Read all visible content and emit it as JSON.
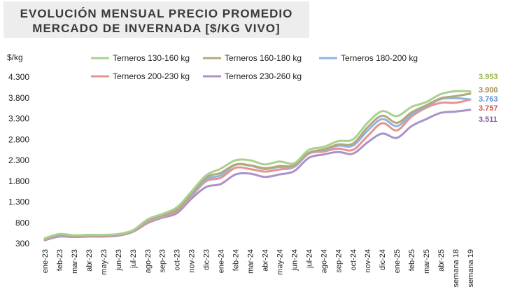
{
  "chart_data": {
    "type": "line",
    "title": [
      "EVOLUCIÓN MENSUAL PRECIO PROMEDIO",
      "MERCADO DE INVERNADA [$/KG VIVO]"
    ],
    "ylabel": "$/kg",
    "ylim": [
      300,
      4300
    ],
    "yticks": [
      300,
      800,
      1300,
      1800,
      2300,
      2800,
      3300,
      3800,
      4300
    ],
    "yticklabels": [
      "300",
      "800",
      "1.300",
      "1.800",
      "2.300",
      "2.800",
      "3.300",
      "3.800",
      "4.300"
    ],
    "categories": [
      "ene-23",
      "feb-23",
      "mar-23",
      "abr-23",
      "may-23",
      "jun-23",
      "jul-23",
      "ago-23",
      "sep-23",
      "oct-23",
      "nov-23",
      "dic-23",
      "ene-24",
      "feb-24",
      "mar-24",
      "abr-24",
      "may-24",
      "jun-24",
      "jul-24",
      "ago-24",
      "sep-24",
      "oct-24",
      "nov-24",
      "dic-24",
      "ene-25",
      "feb-25",
      "mar-25",
      "abr-25",
      "semana 18",
      "semana 19"
    ],
    "series": [
      {
        "name": "Terneros 130-160 kg",
        "color": "#a9d18e",
        "end_label": "3.953",
        "values": [
          430,
          530,
          500,
          510,
          510,
          530,
          620,
          880,
          1010,
          1170,
          1550,
          1940,
          2100,
          2300,
          2300,
          2200,
          2270,
          2230,
          2550,
          2620,
          2760,
          2800,
          3200,
          3480,
          3360,
          3580,
          3700,
          3890,
          3960,
          3953
        ]
      },
      {
        "name": "Terneros 160-180 kg",
        "color": "#b5a878",
        "end_label": "3.900",
        "values": [
          420,
          510,
          490,
          500,
          500,
          520,
          600,
          860,
          980,
          1120,
          1500,
          1890,
          2000,
          2200,
          2180,
          2110,
          2160,
          2180,
          2480,
          2560,
          2680,
          2700,
          3090,
          3370,
          3200,
          3450,
          3620,
          3790,
          3840,
          3900
        ]
      },
      {
        "name": "Terneros 180-200 kg",
        "color": "#8fb4e3",
        "end_label": "3.763",
        "values": [
          410,
          500,
          490,
          500,
          500,
          520,
          600,
          840,
          960,
          1110,
          1460,
          1840,
          1940,
          2190,
          2170,
          2090,
          2140,
          2150,
          2470,
          2540,
          2650,
          2650,
          3010,
          3290,
          3120,
          3400,
          3590,
          3770,
          3790,
          3763
        ]
      },
      {
        "name": "Terneros 200-230 kg",
        "color": "#e8938e",
        "end_label": "3.757",
        "values": [
          400,
          490,
          480,
          490,
          490,
          510,
          590,
          810,
          940,
          1080,
          1440,
          1800,
          1880,
          2120,
          2090,
          2030,
          2080,
          2140,
          2460,
          2510,
          2580,
          2550,
          2880,
          3190,
          3020,
          3350,
          3560,
          3680,
          3680,
          3757
        ]
      },
      {
        "name": "Terneros 230-260 kg",
        "color": "#a993c9",
        "end_label": "3.511",
        "values": [
          380,
          470,
          460,
          470,
          470,
          490,
          580,
          790,
          920,
          1030,
          1380,
          1660,
          1730,
          1960,
          1980,
          1900,
          1960,
          2040,
          2360,
          2440,
          2500,
          2460,
          2730,
          2940,
          2840,
          3120,
          3290,
          3440,
          3470,
          3511
        ]
      }
    ],
    "end_label_colors": [
      "#93b44a",
      "#a08c4a",
      "#5b8fd3",
      "#d9534f",
      "#8064a2"
    ],
    "legend": "top"
  }
}
